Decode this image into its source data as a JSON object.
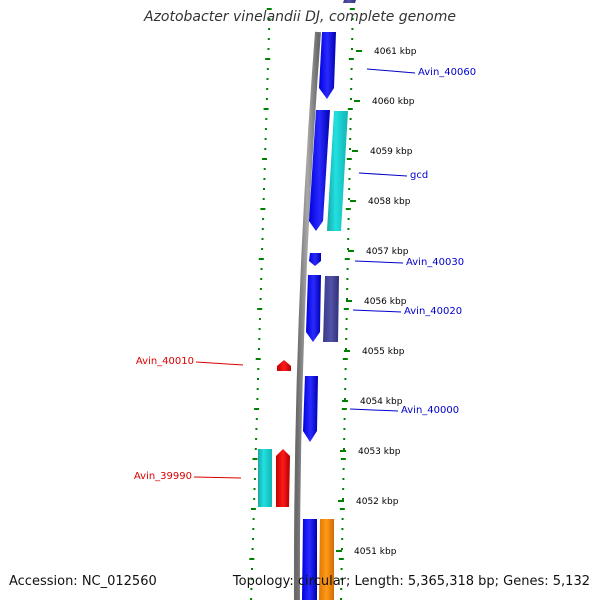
{
  "title": "Azotobacter vinelandii DJ, complete genome",
  "accession": "Accession: NC_012560",
  "summary": "Topology: circular; Length: 5,365,318 bp; Genes: 5,132",
  "colors": {
    "forward_label": "#0000cc",
    "reverse_label": "#dd0000",
    "backbone": "#808080",
    "tick": "#008000"
  },
  "kbp_ticks": [
    {
      "label": "4061 kbp",
      "pos": 4061
    },
    {
      "label": "4060 kbp",
      "pos": 4060
    },
    {
      "label": "4059 kbp",
      "pos": 4059
    },
    {
      "label": "4058 kbp",
      "pos": 4058
    },
    {
      "label": "4057 kbp",
      "pos": 4057
    },
    {
      "label": "4056 kbp",
      "pos": 4056
    },
    {
      "label": "4055 kbp",
      "pos": 4055
    },
    {
      "label": "4054 kbp",
      "pos": 4054
    },
    {
      "label": "4053 kbp",
      "pos": 4053
    },
    {
      "label": "4052 kbp",
      "pos": 4052
    },
    {
      "label": "4051 kbp",
      "pos": 4051
    }
  ],
  "gene_labels": [
    {
      "text": "Avin_40060",
      "strand": "forward"
    },
    {
      "text": "gcd",
      "strand": "forward"
    },
    {
      "text": "Avin_40030",
      "strand": "forward"
    },
    {
      "text": "Avin_40020",
      "strand": "forward"
    },
    {
      "text": "Avin_40010",
      "strand": "reverse"
    },
    {
      "text": "Avin_40000",
      "strand": "forward"
    },
    {
      "text": "Avin_39990",
      "strand": "reverse"
    }
  ]
}
